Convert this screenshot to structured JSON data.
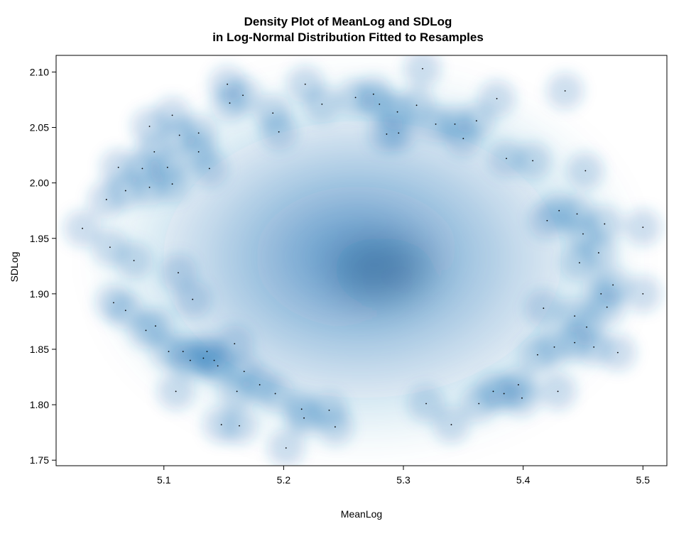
{
  "chart_data": {
    "type": "heatmap",
    "title_lines": [
      "Density Plot of MeanLog and SDLog",
      "in Log-Normal Distribution Fitted to Resamples"
    ],
    "xlabel": "MeanLog",
    "ylabel": "SDLog",
    "xlim": [
      5.01,
      5.52
    ],
    "ylim": [
      1.745,
      2.115
    ],
    "x_ticks": [
      5.1,
      5.2,
      5.3,
      5.4,
      5.5
    ],
    "x_tick_labels": [
      "5.1",
      "5.2",
      "5.3",
      "5.4",
      "5.5"
    ],
    "y_ticks": [
      1.75,
      1.8,
      1.85,
      1.9,
      1.95,
      2.0,
      2.05,
      2.1
    ],
    "y_tick_labels": [
      "1.75",
      "1.80",
      "1.85",
      "1.90",
      "1.95",
      "2.00",
      "2.05",
      "2.10"
    ],
    "grid": false,
    "color_scale": [
      "#ffffff",
      "#c6dbef",
      "#6baed6",
      "#2171b5",
      "#08306b"
    ],
    "points": [
      [
        5.032,
        1.959
      ],
      [
        5.052,
        1.985
      ],
      [
        5.055,
        1.942
      ],
      [
        5.058,
        1.892
      ],
      [
        5.062,
        2.014
      ],
      [
        5.068,
        1.993
      ],
      [
        5.068,
        1.885
      ],
      [
        5.075,
        1.93
      ],
      [
        5.082,
        2.013
      ],
      [
        5.085,
        1.867
      ],
      [
        5.088,
        2.051
      ],
      [
        5.088,
        1.996
      ],
      [
        5.092,
        2.028
      ],
      [
        5.093,
        1.871
      ],
      [
        5.103,
        2.014
      ],
      [
        5.104,
        1.848
      ],
      [
        5.107,
        2.061
      ],
      [
        5.107,
        1.999
      ],
      [
        5.11,
        1.812
      ],
      [
        5.112,
        1.919
      ],
      [
        5.113,
        2.043
      ],
      [
        5.116,
        1.848
      ],
      [
        5.122,
        1.84
      ],
      [
        5.124,
        1.895
      ],
      [
        5.129,
        2.045
      ],
      [
        5.129,
        2.028
      ],
      [
        5.133,
        1.842
      ],
      [
        5.136,
        1.848
      ],
      [
        5.138,
        2.013
      ],
      [
        5.142,
        1.84
      ],
      [
        5.145,
        1.835
      ],
      [
        5.148,
        1.782
      ],
      [
        5.153,
        2.089
      ],
      [
        5.155,
        2.072
      ],
      [
        5.159,
        1.855
      ],
      [
        5.161,
        1.812
      ],
      [
        5.163,
        1.781
      ],
      [
        5.166,
        2.079
      ],
      [
        5.167,
        1.83
      ],
      [
        5.18,
        1.818
      ],
      [
        5.191,
        2.063
      ],
      [
        5.193,
        1.81
      ],
      [
        5.196,
        2.046
      ],
      [
        5.202,
        1.761
      ],
      [
        5.215,
        1.796
      ],
      [
        5.217,
        1.788
      ],
      [
        5.218,
        2.089
      ],
      [
        5.232,
        2.071
      ],
      [
        5.238,
        1.795
      ],
      [
        5.243,
        1.78
      ],
      [
        5.26,
        2.077
      ],
      [
        5.275,
        2.08
      ],
      [
        5.28,
        2.071
      ],
      [
        5.286,
        2.044
      ],
      [
        5.295,
        2.064
      ],
      [
        5.296,
        2.045
      ],
      [
        5.311,
        2.07
      ],
      [
        5.316,
        2.103
      ],
      [
        5.319,
        1.801
      ],
      [
        5.327,
        2.053
      ],
      [
        5.34,
        1.782
      ],
      [
        5.343,
        2.053
      ],
      [
        5.35,
        2.04
      ],
      [
        5.361,
        2.056
      ],
      [
        5.363,
        1.801
      ],
      [
        5.375,
        1.812
      ],
      [
        5.378,
        2.076
      ],
      [
        5.384,
        1.81
      ],
      [
        5.386,
        2.022
      ],
      [
        5.396,
        1.818
      ],
      [
        5.399,
        1.806
      ],
      [
        5.408,
        2.02
      ],
      [
        5.412,
        1.845
      ],
      [
        5.417,
        1.887
      ],
      [
        5.42,
        1.966
      ],
      [
        5.426,
        1.852
      ],
      [
        5.429,
        1.812
      ],
      [
        5.43,
        1.975
      ],
      [
        5.435,
        2.083
      ],
      [
        5.443,
        1.88
      ],
      [
        5.443,
        1.856
      ],
      [
        5.445,
        1.972
      ],
      [
        5.447,
        1.928
      ],
      [
        5.45,
        1.954
      ],
      [
        5.452,
        2.011
      ],
      [
        5.453,
        1.87
      ],
      [
        5.459,
        1.852
      ],
      [
        5.463,
        1.937
      ],
      [
        5.465,
        1.9
      ],
      [
        5.468,
        1.963
      ],
      [
        5.47,
        1.888
      ],
      [
        5.475,
        1.908
      ],
      [
        5.479,
        1.847
      ],
      [
        5.5,
        1.96
      ],
      [
        5.5,
        1.9
      ]
    ]
  }
}
